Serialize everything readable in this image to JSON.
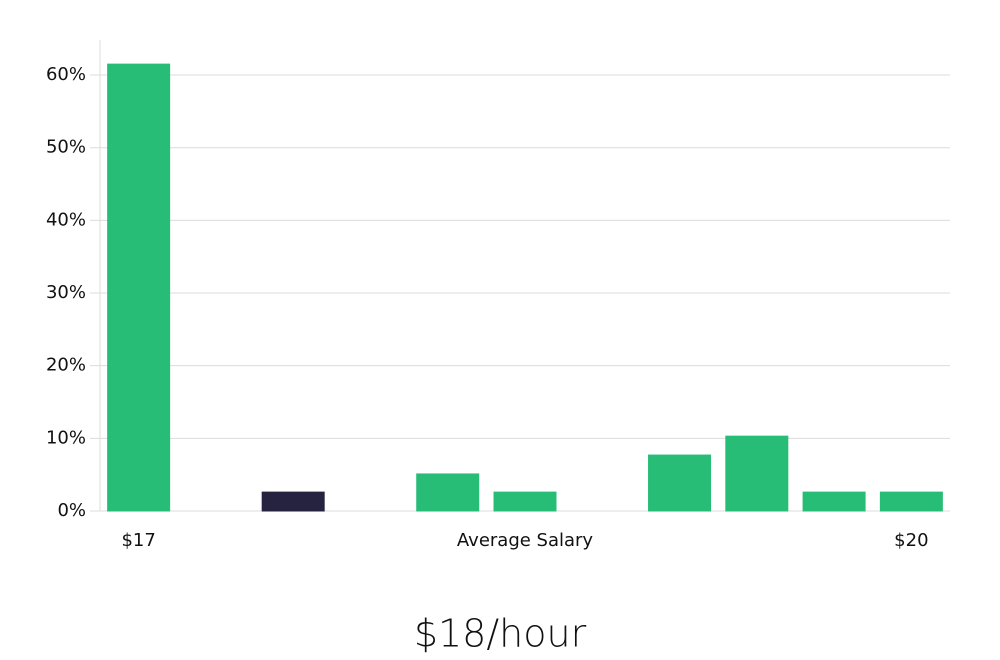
{
  "chart_data": {
    "type": "bar",
    "categories": [
      "$17",
      null,
      null,
      null,
      null,
      null,
      null,
      null,
      null,
      null,
      "$20"
    ],
    "values": [
      61.5,
      0,
      2.6,
      0,
      5.1,
      2.6,
      0,
      7.7,
      10.3,
      2.6,
      2.6
    ],
    "colors": [
      "#27bd77",
      "#27bd77",
      "#25233f",
      "#27bd77",
      "#27bd77",
      "#27bd77",
      "#27bd77",
      "#27bd77",
      "#27bd77",
      "#27bd77",
      "#27bd77"
    ],
    "xlabel": "Average Salary",
    "ylim": [
      0,
      65
    ],
    "yticks": [
      {
        "value": 0,
        "label": "0%"
      },
      {
        "value": 10,
        "label": "10%"
      },
      {
        "value": 20,
        "label": "20%"
      },
      {
        "value": 30,
        "label": "30%"
      },
      {
        "value": 40,
        "label": "40%"
      },
      {
        "value": 50,
        "label": "50%"
      },
      {
        "value": 60,
        "label": "60%"
      }
    ],
    "grid": true,
    "summary": "$18/hour"
  }
}
